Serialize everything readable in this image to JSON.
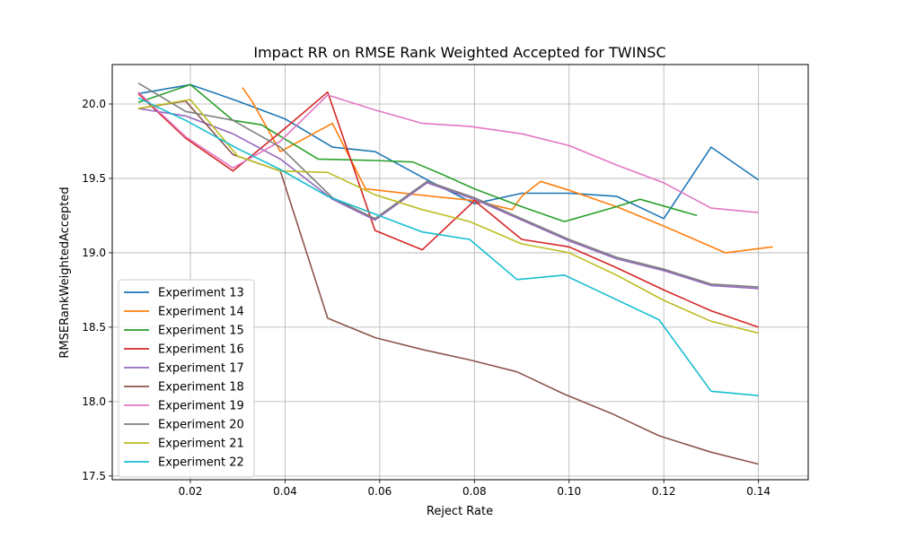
{
  "chart_data": {
    "type": "line",
    "title": "Impact RR on RMSE Rank Weighted Accepted for TWINSC",
    "xlabel": "Reject Rate",
    "ylabel": "RMSERankWeightedAccepted",
    "xlim": [
      0.0035,
      0.1505
    ],
    "ylim": [
      17.475,
      20.265
    ],
    "xticks": [
      0.02,
      0.04,
      0.06,
      0.08,
      0.1,
      0.12,
      0.14
    ],
    "xtick_labels": [
      "0.02",
      "0.04",
      "0.06",
      "0.08",
      "0.10",
      "0.12",
      "0.14"
    ],
    "yticks": [
      17.5,
      18.0,
      18.5,
      19.0,
      19.5,
      20.0
    ],
    "ytick_labels": [
      "17.5",
      "18.0",
      "18.5",
      "19.0",
      "19.5",
      "20.0"
    ],
    "grid": true,
    "legend_position": "lower-left",
    "series": [
      {
        "name": "Experiment 13",
        "color": "#1f77b4",
        "points": [
          [
            0.009,
            20.07
          ],
          [
            0.02,
            20.13
          ],
          [
            0.03,
            20.02
          ],
          [
            0.04,
            19.9
          ],
          [
            0.05,
            19.71
          ],
          [
            0.059,
            19.68
          ],
          [
            0.07,
            19.49
          ],
          [
            0.08,
            19.33
          ],
          [
            0.09,
            19.4
          ],
          [
            0.1,
            19.4
          ],
          [
            0.11,
            19.38
          ],
          [
            0.12,
            19.23
          ],
          [
            0.13,
            19.71
          ],
          [
            0.14,
            19.49
          ]
        ]
      },
      {
        "name": "Experiment 14",
        "color": "#ff7f0e",
        "points": [
          [
            0.031,
            20.11
          ],
          [
            0.033,
            20.02
          ],
          [
            0.039,
            19.68
          ],
          [
            0.05,
            19.87
          ],
          [
            0.057,
            19.43
          ],
          [
            0.068,
            19.39
          ],
          [
            0.08,
            19.35
          ],
          [
            0.088,
            19.29
          ],
          [
            0.09,
            19.38
          ],
          [
            0.094,
            19.48
          ],
          [
            0.1,
            19.42
          ],
          [
            0.11,
            19.31
          ],
          [
            0.12,
            19.18
          ],
          [
            0.133,
            19.0
          ],
          [
            0.143,
            19.04
          ]
        ]
      },
      {
        "name": "Experiment 15",
        "color": "#2ca02c",
        "points": [
          [
            0.009,
            20.01
          ],
          [
            0.02,
            20.13
          ],
          [
            0.029,
            19.89
          ],
          [
            0.035,
            19.86
          ],
          [
            0.047,
            19.63
          ],
          [
            0.059,
            19.62
          ],
          [
            0.067,
            19.61
          ],
          [
            0.073,
            19.53
          ],
          [
            0.08,
            19.43
          ],
          [
            0.09,
            19.31
          ],
          [
            0.099,
            19.21
          ],
          [
            0.11,
            19.31
          ],
          [
            0.115,
            19.36
          ],
          [
            0.127,
            19.25
          ]
        ]
      },
      {
        "name": "Experiment 16",
        "color": "#d62728",
        "points": [
          [
            0.009,
            20.07
          ],
          [
            0.019,
            19.77
          ],
          [
            0.029,
            19.55
          ],
          [
            0.039,
            19.81
          ],
          [
            0.049,
            20.08
          ],
          [
            0.059,
            19.15
          ],
          [
            0.069,
            19.02
          ],
          [
            0.08,
            19.35
          ],
          [
            0.09,
            19.09
          ],
          [
            0.1,
            19.04
          ],
          [
            0.11,
            18.9
          ],
          [
            0.12,
            18.75
          ],
          [
            0.13,
            18.61
          ],
          [
            0.14,
            18.5
          ]
        ]
      },
      {
        "name": "Experiment 17",
        "color": "#9467bd",
        "points": [
          [
            0.009,
            19.97
          ],
          [
            0.019,
            19.92
          ],
          [
            0.029,
            19.8
          ],
          [
            0.039,
            19.63
          ],
          [
            0.05,
            19.36
          ],
          [
            0.059,
            19.22
          ],
          [
            0.07,
            19.47
          ],
          [
            0.08,
            19.36
          ],
          [
            0.09,
            19.22
          ],
          [
            0.1,
            19.08
          ],
          [
            0.11,
            18.96
          ],
          [
            0.12,
            18.88
          ],
          [
            0.13,
            18.78
          ],
          [
            0.14,
            18.76
          ]
        ]
      },
      {
        "name": "Experiment 18",
        "color": "#8c564b",
        "points": [
          [
            0.009,
            19.97
          ],
          [
            0.019,
            20.02
          ],
          [
            0.029,
            19.66
          ],
          [
            0.039,
            19.55
          ],
          [
            0.049,
            18.56
          ],
          [
            0.059,
            18.43
          ],
          [
            0.069,
            18.35
          ],
          [
            0.079,
            18.28
          ],
          [
            0.089,
            18.2
          ],
          [
            0.099,
            18.05
          ],
          [
            0.109,
            17.92
          ],
          [
            0.119,
            17.77
          ],
          [
            0.13,
            17.66
          ],
          [
            0.14,
            17.58
          ]
        ]
      },
      {
        "name": "Experiment 19",
        "color": "#e377c2",
        "points": [
          [
            0.009,
            20.08
          ],
          [
            0.019,
            19.78
          ],
          [
            0.029,
            19.57
          ],
          [
            0.039,
            19.75
          ],
          [
            0.049,
            20.06
          ],
          [
            0.059,
            19.96
          ],
          [
            0.069,
            19.87
          ],
          [
            0.079,
            19.85
          ],
          [
            0.09,
            19.8
          ],
          [
            0.1,
            19.72
          ],
          [
            0.11,
            19.59
          ],
          [
            0.12,
            19.47
          ],
          [
            0.13,
            19.3
          ],
          [
            0.14,
            19.27
          ]
        ]
      },
      {
        "name": "Experiment 20",
        "color": "#7f7f7f",
        "points": [
          [
            0.009,
            20.14
          ],
          [
            0.019,
            19.95
          ],
          [
            0.029,
            19.89
          ],
          [
            0.039,
            19.71
          ],
          [
            0.05,
            19.37
          ],
          [
            0.059,
            19.23
          ],
          [
            0.07,
            19.48
          ],
          [
            0.08,
            19.37
          ],
          [
            0.09,
            19.23
          ],
          [
            0.1,
            19.09
          ],
          [
            0.11,
            18.97
          ],
          [
            0.12,
            18.89
          ],
          [
            0.13,
            18.79
          ],
          [
            0.14,
            18.77
          ]
        ]
      },
      {
        "name": "Experiment 21",
        "color": "#bcbd22",
        "points": [
          [
            0.009,
            19.97
          ],
          [
            0.02,
            20.03
          ],
          [
            0.03,
            19.65
          ],
          [
            0.039,
            19.55
          ],
          [
            0.049,
            19.54
          ],
          [
            0.059,
            19.39
          ],
          [
            0.069,
            19.29
          ],
          [
            0.079,
            19.21
          ],
          [
            0.09,
            19.06
          ],
          [
            0.1,
            19.0
          ],
          [
            0.11,
            18.85
          ],
          [
            0.12,
            18.68
          ],
          [
            0.13,
            18.54
          ],
          [
            0.14,
            18.46
          ]
        ]
      },
      {
        "name": "Experiment 22",
        "color": "#17becf",
        "points": [
          [
            0.009,
            20.04
          ],
          [
            0.019,
            19.89
          ],
          [
            0.03,
            19.7
          ],
          [
            0.039,
            19.56
          ],
          [
            0.049,
            19.38
          ],
          [
            0.059,
            19.26
          ],
          [
            0.069,
            19.14
          ],
          [
            0.079,
            19.09
          ],
          [
            0.089,
            18.82
          ],
          [
            0.099,
            18.85
          ],
          [
            0.109,
            18.7
          ],
          [
            0.119,
            18.55
          ],
          [
            0.13,
            18.07
          ],
          [
            0.14,
            18.04
          ]
        ]
      }
    ]
  }
}
